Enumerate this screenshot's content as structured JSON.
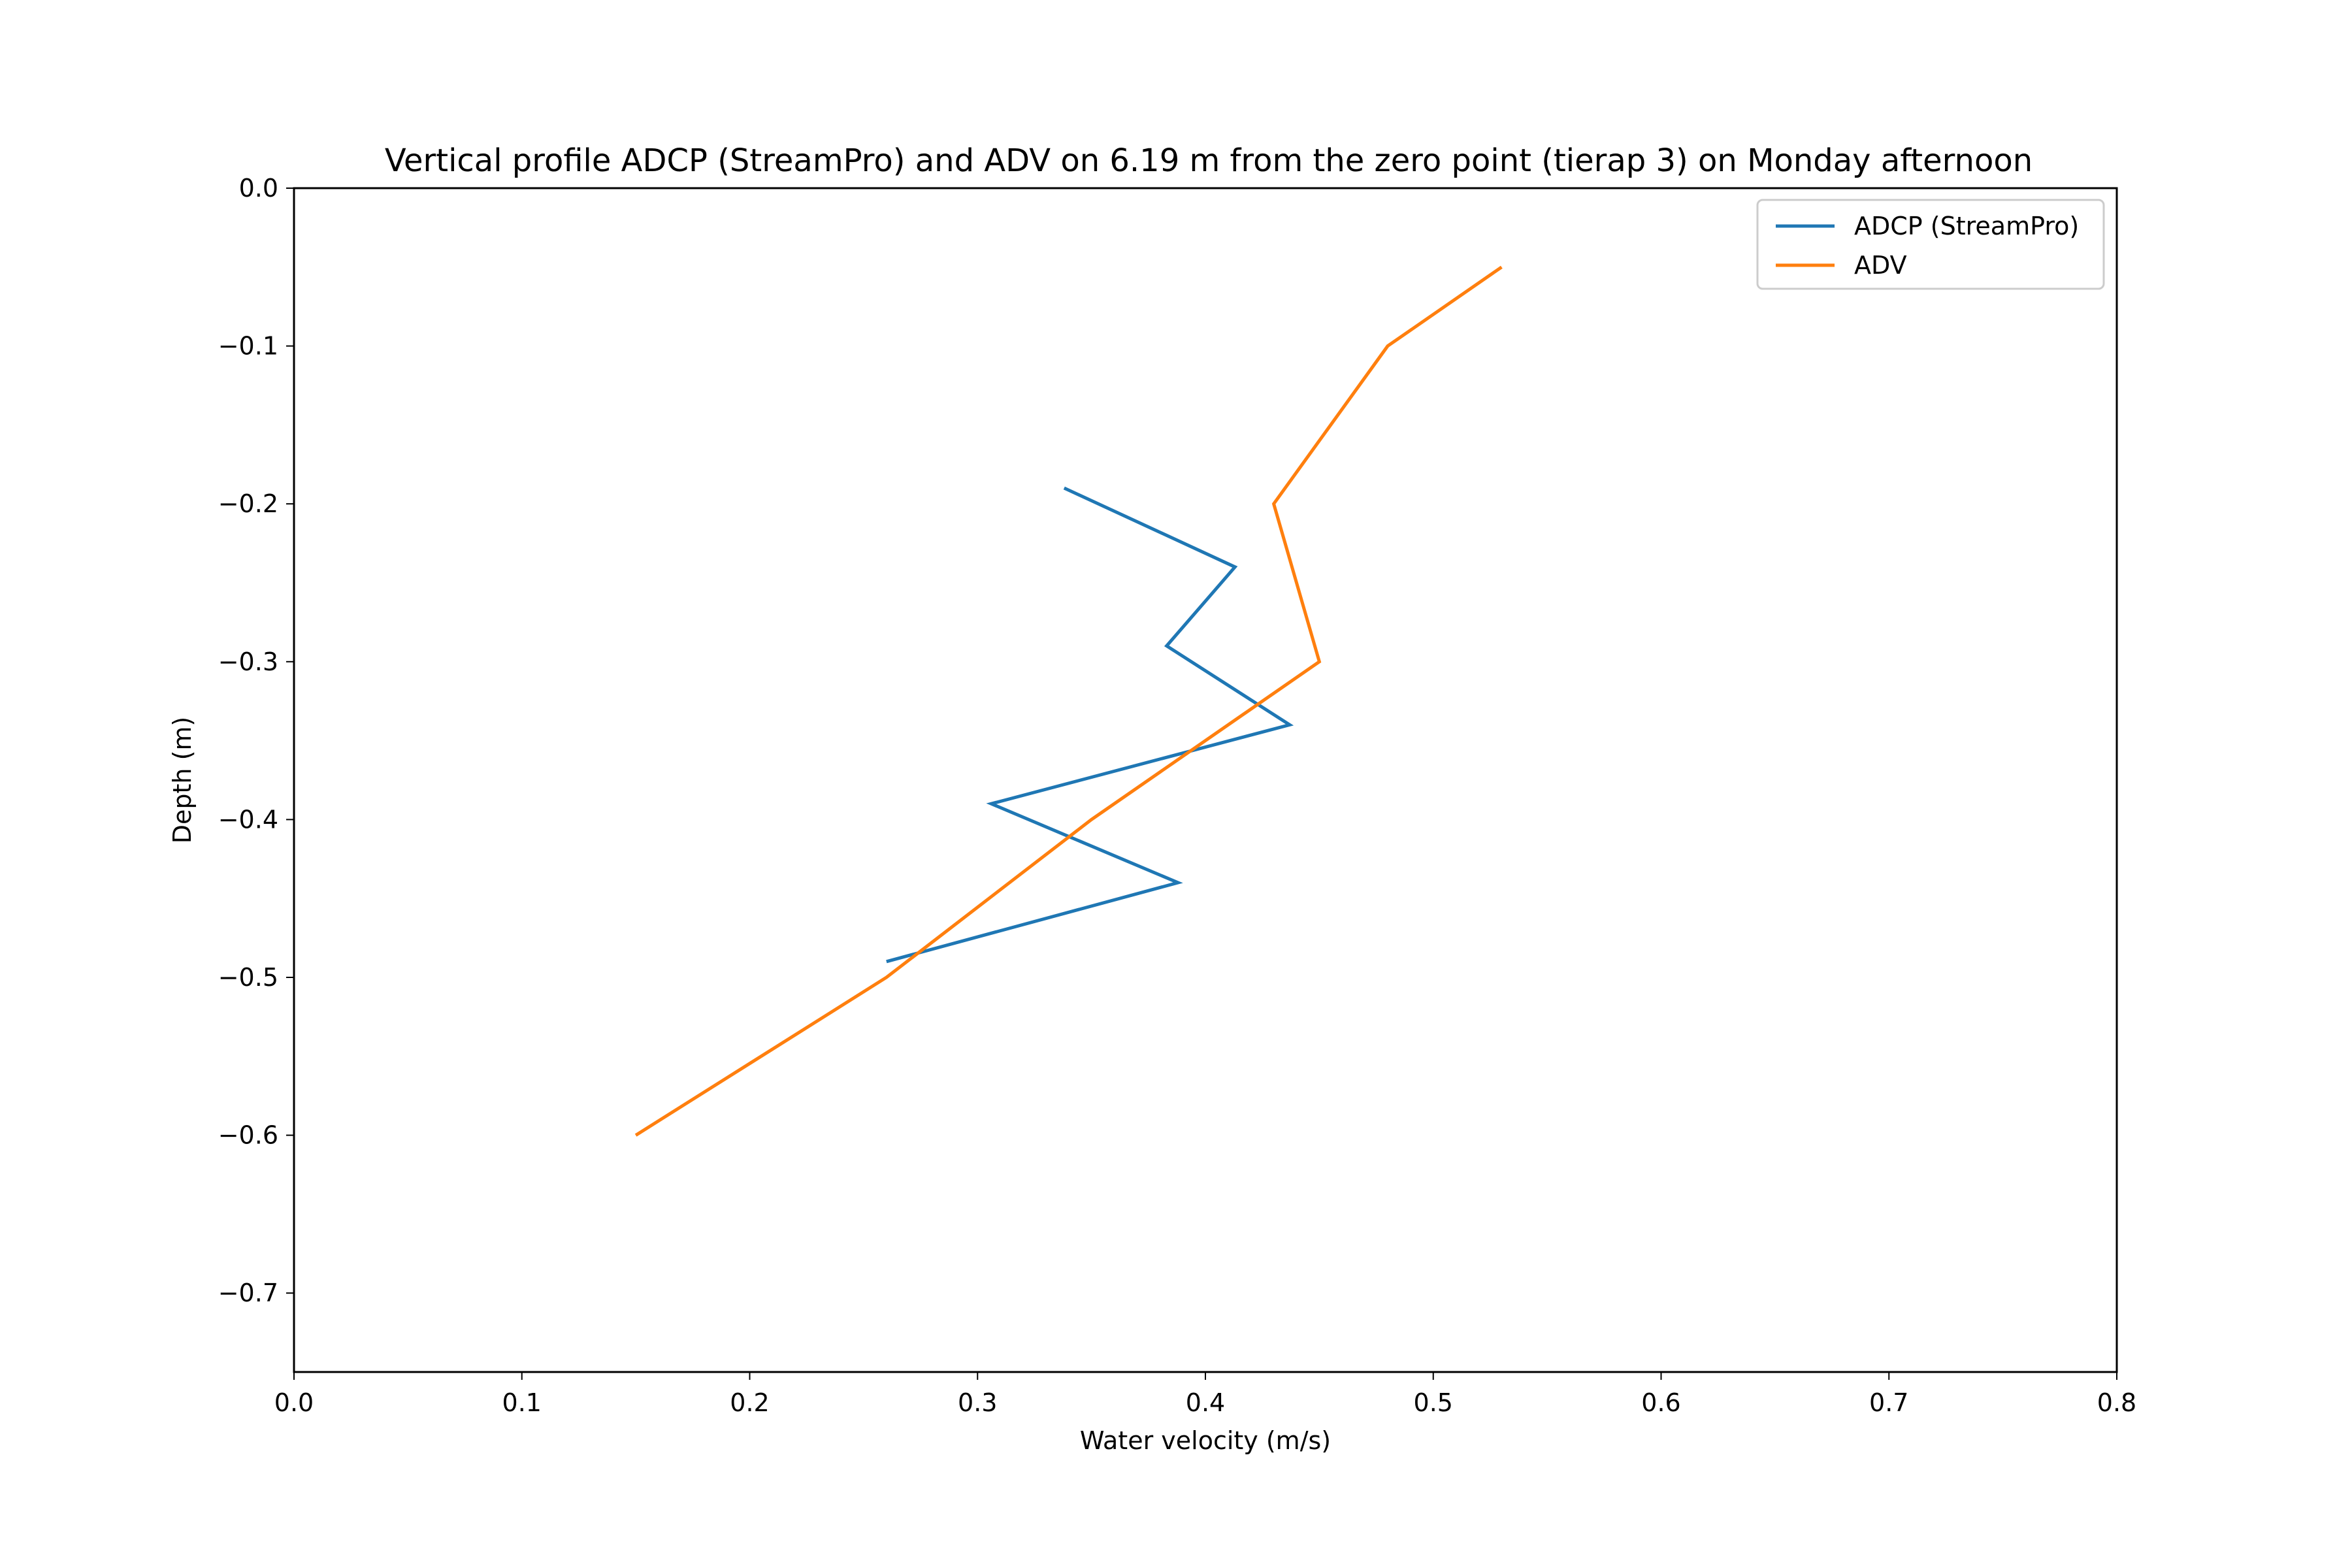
{
  "chart_data": {
    "type": "line",
    "title": "Vertical profile ADCP (StreamPro) and ADV on 6.19 m from the zero point (tierap 3) on Monday afternoon",
    "xlabel": "Water velocity (m/s)",
    "ylabel": "Depth (m)",
    "xlim": [
      0.0,
      0.8
    ],
    "ylim": [
      -0.75,
      0.0
    ],
    "xticks": [
      {
        "value": 0.0,
        "label": "0.0"
      },
      {
        "value": 0.1,
        "label": "0.1"
      },
      {
        "value": 0.2,
        "label": "0.2"
      },
      {
        "value": 0.3,
        "label": "0.3"
      },
      {
        "value": 0.4,
        "label": "0.4"
      },
      {
        "value": 0.5,
        "label": "0.5"
      },
      {
        "value": 0.6,
        "label": "0.6"
      },
      {
        "value": 0.7,
        "label": "0.7"
      },
      {
        "value": 0.8,
        "label": "0.8"
      }
    ],
    "yticks": [
      {
        "value": 0.0,
        "label": "0.0"
      },
      {
        "value": -0.1,
        "label": "−0.1"
      },
      {
        "value": -0.2,
        "label": "−0.2"
      },
      {
        "value": -0.3,
        "label": "−0.3"
      },
      {
        "value": -0.4,
        "label": "−0.4"
      },
      {
        "value": -0.5,
        "label": "−0.5"
      },
      {
        "value": -0.6,
        "label": "−0.6"
      },
      {
        "value": -0.7,
        "label": "−0.7"
      }
    ],
    "grid": false,
    "legend_position": "top-right",
    "series": [
      {
        "name": "ADCP (StreamPro)",
        "color": "#1f77b4",
        "points": [
          {
            "x": 0.338,
            "y": -0.19
          },
          {
            "x": 0.413,
            "y": -0.24
          },
          {
            "x": 0.383,
            "y": -0.29
          },
          {
            "x": 0.437,
            "y": -0.34
          },
          {
            "x": 0.306,
            "y": -0.39
          },
          {
            "x": 0.388,
            "y": -0.44
          },
          {
            "x": 0.26,
            "y": -0.49
          }
        ]
      },
      {
        "name": "ADV",
        "color": "#ff7f0e",
        "points": [
          {
            "x": 0.53,
            "y": -0.05
          },
          {
            "x": 0.48,
            "y": -0.1
          },
          {
            "x": 0.43,
            "y": -0.2
          },
          {
            "x": 0.45,
            "y": -0.3
          },
          {
            "x": 0.35,
            "y": -0.4
          },
          {
            "x": 0.26,
            "y": -0.5
          },
          {
            "x": 0.15,
            "y": -0.6
          }
        ]
      }
    ]
  }
}
